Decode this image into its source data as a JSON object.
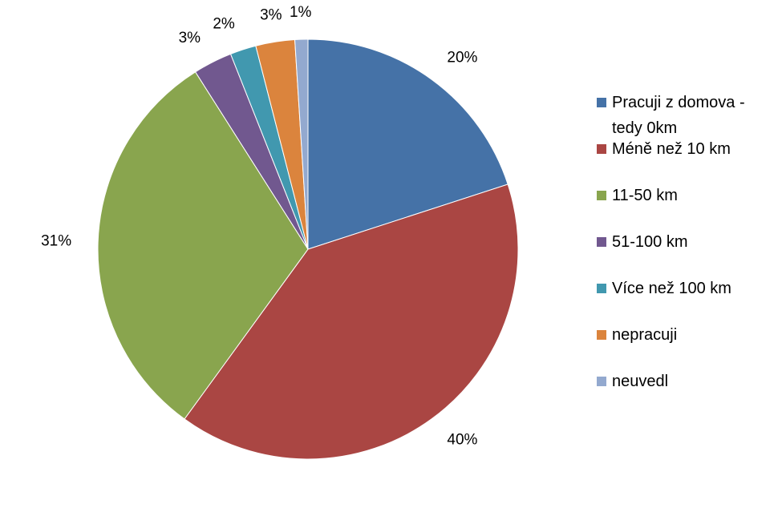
{
  "chart_data": {
    "type": "pie",
    "categories": [
      "Pracuji z domova - tedy 0km",
      "Méně než 10 km",
      "11-50 km",
      "51-100 km",
      "Více než 100 km",
      "nepracuji",
      "neuvedl"
    ],
    "values": [
      20,
      40,
      31,
      3,
      2,
      3,
      1
    ],
    "value_labels": [
      "20%",
      "40%",
      "31%",
      "3%",
      "2%",
      "3%",
      "1%"
    ],
    "colors": [
      "#4572a7",
      "#aa4643",
      "#89a54e",
      "#71588f",
      "#4198af",
      "#db843d",
      "#93a9cf"
    ],
    "legend": "right"
  }
}
